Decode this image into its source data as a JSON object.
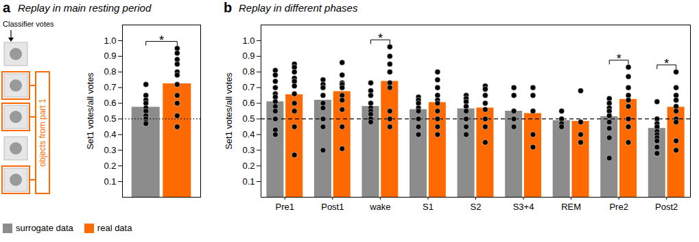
{
  "chart_data": [
    {
      "type": "bar",
      "panel_label": "a",
      "title": "Replay in main resting period",
      "icon_caption": "Classifier votes",
      "icon_group_label": "objects from part 1",
      "y_label": "Set1 votes/all votes",
      "categories": [
        null
      ],
      "series": [
        {
          "name": "surrogate data",
          "color": "#8c8c8c",
          "values": [
            0.575
          ],
          "points": [
            [
              0.72,
              0.65,
              0.62,
              0.6,
              0.57,
              0.55,
              0.52,
              0.5,
              0.48,
              0.47
            ]
          ]
        },
        {
          "name": "real data",
          "color": "#ff6a00",
          "values": [
            0.725
          ],
          "points": [
            [
              0.95,
              0.92,
              0.88,
              0.85,
              0.8,
              0.78,
              0.72,
              0.65,
              0.6,
              0.52,
              0.45
            ]
          ]
        }
      ],
      "significant": [
        true
      ],
      "significance_label": "*",
      "reference_line": {
        "value": 0.5,
        "line_style": "dotted"
      },
      "ylim": [
        0,
        1.1
      ],
      "yticks": [
        0.1,
        0.2,
        0.3,
        0.4,
        0.5,
        0.6,
        0.7,
        0.8,
        0.9,
        {
          "value": 1,
          "label": "1.0"
        }
      ],
      "legend": "bottom-left",
      "grid": false
    },
    {
      "type": "bar",
      "panel_label": "b",
      "title": "Replay in different phases",
      "y_label": "Set1 votes/all votes",
      "categories": [
        "Pre1",
        "Post1",
        "wake",
        "S1",
        "S2",
        "S3+4",
        "REM",
        "Pre2",
        "Post2"
      ],
      "series": [
        {
          "name": "surrogate data",
          "color": "#8c8c8c",
          "values": [
            0.61,
            0.62,
            0.58,
            0.56,
            0.565,
            0.55,
            0.49,
            0.515,
            0.44
          ],
          "points": [
            [
              0.81,
              0.78,
              0.74,
              0.7,
              0.66,
              0.64,
              0.61,
              0.58,
              0.55,
              0.5,
              0.43,
              0.4
            ],
            [
              0.75,
              0.72,
              0.7,
              0.65,
              0.6,
              0.57,
              0.5,
              0.45,
              0.3
            ],
            [
              0.73,
              0.68,
              0.65,
              0.6,
              0.57,
              0.55,
              0.53,
              0.5,
              0.48
            ],
            [
              0.64,
              0.62,
              0.6,
              0.57,
              0.55,
              0.5,
              0.45,
              0.4
            ],
            [
              0.65,
              0.63,
              0.61,
              0.58,
              0.55,
              0.5,
              0.45,
              0.4
            ],
            [
              0.7,
              0.65,
              0.55,
              0.5,
              0.45
            ],
            [
              0.55,
              0.5,
              0.47,
              0.45
            ],
            [
              0.63,
              0.6,
              0.57,
              0.55,
              0.52,
              0.48,
              0.44,
              0.38,
              0.25
            ],
            [
              0.61,
              0.5,
              0.47,
              0.45,
              0.42,
              0.4,
              0.38,
              0.36,
              0.32,
              0.28
            ]
          ]
        },
        {
          "name": "real data",
          "color": "#ff6a00",
          "values": [
            0.655,
            0.675,
            0.74,
            0.605,
            0.57,
            0.535,
            0.485,
            0.625,
            0.575
          ],
          "points": [
            [
              0.85,
              0.83,
              0.8,
              0.76,
              0.74,
              0.71,
              0.66,
              0.6,
              0.55,
              0.45,
              0.27
            ],
            [
              0.86,
              0.78,
              0.73,
              0.72,
              0.7,
              0.65,
              0.62,
              0.56,
              0.45,
              0.31
            ],
            [
              0.96,
              0.9,
              0.85,
              0.8,
              0.73,
              0.7,
              0.55,
              0.5,
              0.45
            ],
            [
              0.8,
              0.75,
              0.7,
              0.65,
              0.62,
              0.6,
              0.55,
              0.5,
              0.45,
              0.4
            ],
            [
              0.71,
              0.69,
              0.65,
              0.6,
              0.56,
              0.5,
              0.45,
              0.35
            ],
            [
              0.7,
              0.65,
              0.55,
              0.4,
              0.32
            ],
            [
              0.68,
              0.48,
              0.4,
              0.35
            ],
            [
              0.83,
              0.77,
              0.7,
              0.65,
              0.62,
              0.58,
              0.5,
              0.45,
              0.35
            ],
            [
              0.8,
              0.7,
              0.65,
              0.62,
              0.58,
              0.55,
              0.5,
              0.48,
              0.36,
              0.3
            ]
          ]
        }
      ],
      "significant": [
        false,
        false,
        true,
        false,
        false,
        false,
        false,
        true,
        true
      ],
      "significance_label": "*",
      "reference_line": {
        "value": 0.5,
        "line_style": "dashed"
      },
      "ylim": [
        0,
        1.1
      ],
      "yticks": [
        0.1,
        0.2,
        0.3,
        0.4,
        0.5,
        0.6,
        0.7,
        0.8,
        0.9,
        {
          "value": 1,
          "label": "1.0"
        }
      ],
      "grid": false
    }
  ]
}
